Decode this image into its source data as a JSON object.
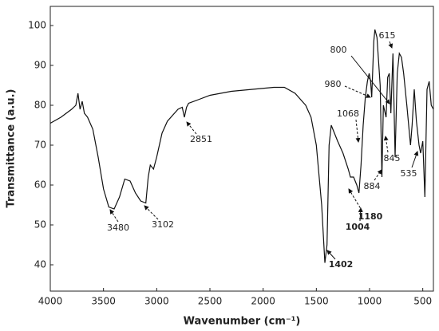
{
  "chart_data": {
    "type": "line",
    "xlabel": "Wavenumber (cm⁻¹)",
    "ylabel": "Transmittance (a.u.)",
    "xlim": [
      4000,
      400
    ],
    "ylim": [
      33.4,
      104.8
    ],
    "xticks": [
      4000,
      3500,
      3000,
      2500,
      2000,
      1500,
      1000,
      500
    ],
    "yticks": [
      40,
      50,
      60,
      70,
      80,
      90,
      100
    ],
    "x": [
      4000,
      3900,
      3800,
      3760,
      3740,
      3720,
      3700,
      3680,
      3650,
      3600,
      3550,
      3500,
      3450,
      3400,
      3350,
      3300,
      3250,
      3200,
      3150,
      3102,
      3080,
      3060,
      3030,
      3000,
      2950,
      2900,
      2800,
      2760,
      2740,
      2720,
      2700,
      2600,
      2500,
      2300,
      2100,
      1900,
      1800,
      1700,
      1600,
      1550,
      1500,
      1450,
      1420,
      1400,
      1380,
      1360,
      1300,
      1250,
      1200,
      1180,
      1150,
      1120,
      1100,
      1080,
      1060,
      1040,
      1020,
      1004,
      990,
      980,
      960,
      950,
      930,
      900,
      884,
      870,
      845,
      830,
      815,
      800,
      780,
      760,
      740,
      720,
      700,
      680,
      650,
      615,
      600,
      580,
      560,
      535,
      520,
      500,
      480,
      460,
      440,
      420,
      400
    ],
    "series": [
      {
        "color": "#111111",
        "values": [
          75.5,
          77,
          79,
          80,
          83,
          79,
          81,
          78,
          77,
          74,
          67,
          59,
          54.5,
          54,
          57,
          61.5,
          61,
          58,
          56,
          55.5,
          62,
          65,
          64,
          67,
          73,
          76,
          79,
          79.5,
          77,
          79.5,
          80.5,
          81.5,
          82.5,
          83.5,
          84,
          84.5,
          84.5,
          83,
          80,
          77,
          70,
          55,
          40.5,
          45,
          70,
          75,
          71,
          68,
          64,
          62,
          62,
          60,
          58,
          65,
          75,
          82,
          86,
          88,
          86,
          82,
          96,
          99,
          97,
          85,
          62,
          80,
          77,
          87,
          88,
          78,
          93,
          67,
          88,
          93,
          92,
          88,
          80,
          70,
          75,
          84,
          76,
          70,
          68,
          71,
          57,
          84,
          86,
          80,
          79
        ]
      }
    ],
    "annotations": [
      {
        "text": "3480"
      },
      {
        "text": "3102"
      },
      {
        "text": "2851"
      },
      {
        "text": "1402"
      },
      {
        "text": "1004"
      },
      {
        "text": "1180"
      },
      {
        "text": "1068"
      },
      {
        "text": "980"
      },
      {
        "text": "800"
      },
      {
        "text": "615"
      },
      {
        "text": "845"
      },
      {
        "text": "884"
      },
      {
        "text": "535"
      }
    ]
  }
}
